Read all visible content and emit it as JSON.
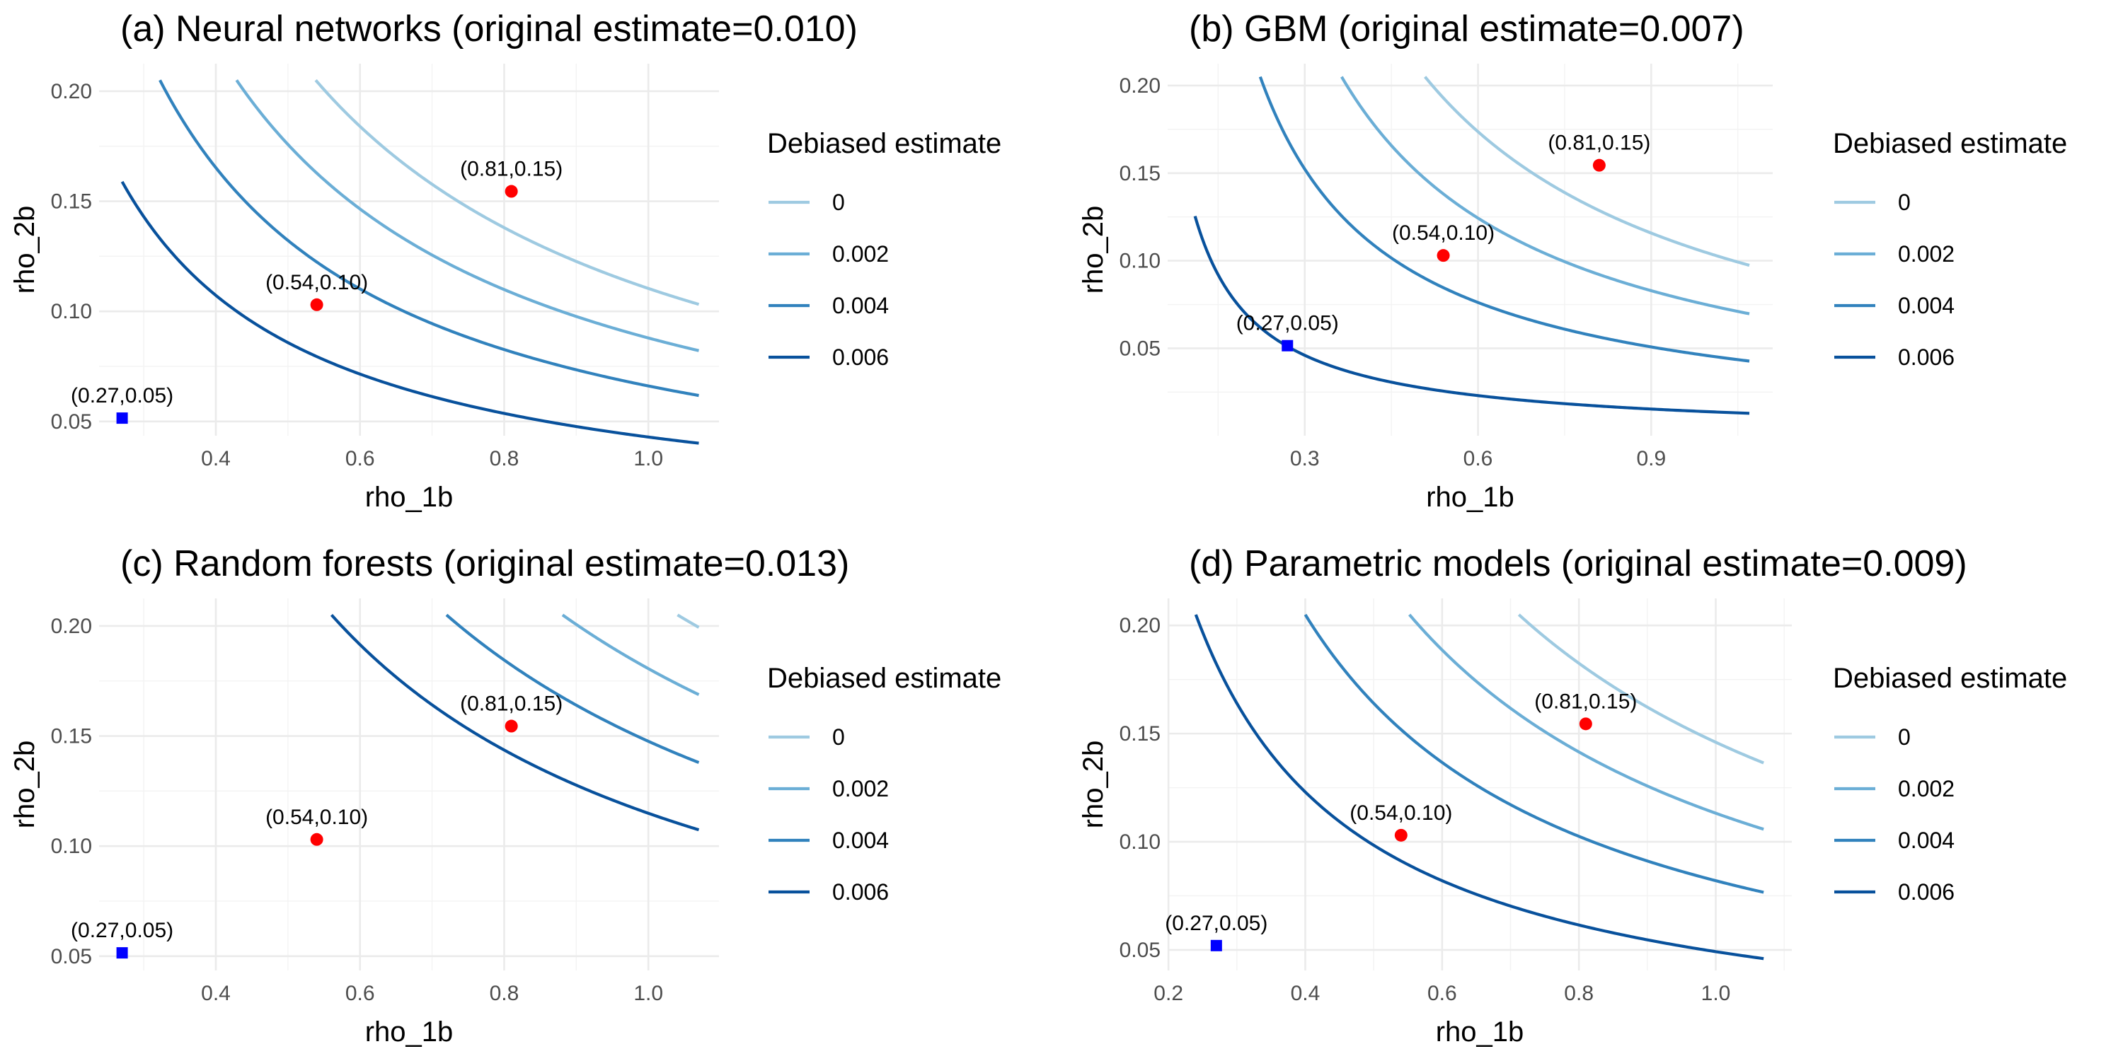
{
  "chart_data": [
    {
      "id": "a",
      "type": "line",
      "title": "(a) Neural networks (original estimate=0.010)",
      "xlabel": "rho_1b",
      "ylabel": "rho_2b",
      "xlim": [
        0.238,
        1.098
      ],
      "ylim": [
        0.0435,
        0.2125
      ],
      "xticks": [
        0.4,
        0.6,
        0.8,
        1.0
      ],
      "xtick_labels": [
        "0.4",
        "0.6",
        "0.8",
        "1.0"
      ],
      "yticks": [
        0.05,
        0.1,
        0.15,
        0.2
      ],
      "ytick_labels": [
        "0.05",
        "0.10",
        "0.15",
        "0.20"
      ],
      "x_range": [
        0.27,
        1.07
      ],
      "y_range": [
        0.05,
        0.205
      ],
      "original_estimate": 0.01,
      "legend": {
        "title": "Debiased estimate",
        "position": "right"
      },
      "series": [
        {
          "name": "0",
          "level": 0,
          "color": "#9ecae1",
          "k": 0.1104
        },
        {
          "name": "0.002",
          "level": 0.002,
          "color": "#6baed6",
          "k": 0.0879
        },
        {
          "name": "0.004",
          "level": 0.004,
          "color": "#3182bd",
          "k": 0.0661
        },
        {
          "name": "0.006",
          "level": 0.006,
          "color": "#08519c",
          "k": 0.0429
        }
      ],
      "points": [
        {
          "label": "(0.27,0.05)",
          "x": 0.27,
          "y": 0.0515,
          "shape": "square",
          "color": "#0000ff"
        },
        {
          "label": "(0.54,0.10)",
          "x": 0.54,
          "y": 0.103,
          "shape": "circle",
          "color": "#ff0000"
        },
        {
          "label": "(0.81,0.15)",
          "x": 0.81,
          "y": 0.1545,
          "shape": "circle",
          "color": "#ff0000"
        }
      ]
    },
    {
      "id": "b",
      "type": "line",
      "title": "(b) GBM (original estimate=0.007)",
      "xlabel": "rho_1b",
      "ylabel": "rho_2b",
      "xlim": [
        0.0626,
        1.1104
      ],
      "ylim": [
        0.0001,
        0.2125
      ],
      "xticks": [
        0.3,
        0.6,
        0.9
      ],
      "xtick_labels": [
        "0.3",
        "0.6",
        "0.9"
      ],
      "yticks": [
        0.05,
        0.1,
        0.15,
        0.2
      ],
      "ytick_labels": [
        "0.05",
        "0.10",
        "0.15",
        "0.20"
      ],
      "x_range": [
        0.11,
        1.07
      ],
      "y_range": [
        0.0,
        0.205
      ],
      "original_estimate": 0.007,
      "legend": {
        "title": "Debiased estimate",
        "position": "right"
      },
      "series": [
        {
          "name": "0",
          "level": 0,
          "color": "#9ecae1",
          "k": 0.1042
        },
        {
          "name": "0.002",
          "level": 0.002,
          "color": "#6baed6",
          "k": 0.0746
        },
        {
          "name": "0.004",
          "level": 0.004,
          "color": "#3182bd",
          "k": 0.0457
        },
        {
          "name": "0.006",
          "level": 0.006,
          "color": "#08519c",
          "k": 0.0138
        }
      ],
      "points": [
        {
          "label": "(0.27,0.05)",
          "x": 0.27,
          "y": 0.0515,
          "shape": "square",
          "color": "#0000ff"
        },
        {
          "label": "(0.54,0.10)",
          "x": 0.54,
          "y": 0.103,
          "shape": "circle",
          "color": "#ff0000"
        },
        {
          "label": "(0.81,0.15)",
          "x": 0.81,
          "y": 0.1545,
          "shape": "circle",
          "color": "#ff0000"
        }
      ]
    },
    {
      "id": "c",
      "type": "line",
      "title": "(c) Random forests (original estimate=0.013)",
      "xlabel": "rho_1b",
      "ylabel": "rho_2b",
      "xlim": [
        0.238,
        1.098
      ],
      "ylim": [
        0.0435,
        0.2125
      ],
      "xticks": [
        0.4,
        0.6,
        0.8,
        1.0
      ],
      "xtick_labels": [
        "0.4",
        "0.6",
        "0.8",
        "1.0"
      ],
      "yticks": [
        0.05,
        0.1,
        0.15,
        0.2
      ],
      "ytick_labels": [
        "0.05",
        "0.10",
        "0.15",
        "0.20"
      ],
      "x_range": [
        0.27,
        1.07
      ],
      "y_range": [
        0.05,
        0.205
      ],
      "original_estimate": 0.013,
      "legend": {
        "title": "Debiased estimate",
        "position": "right"
      },
      "series": [
        {
          "name": "0",
          "level": 0,
          "color": "#9ecae1",
          "k": 0.2133
        },
        {
          "name": "0.002",
          "level": 0.002,
          "color": "#6baed6",
          "k": 0.1806
        },
        {
          "name": "0.004",
          "level": 0.004,
          "color": "#3182bd",
          "k": 0.1476
        },
        {
          "name": "0.006",
          "level": 0.006,
          "color": "#08519c",
          "k": 0.1149
        }
      ],
      "points": [
        {
          "label": "(0.27,0.05)",
          "x": 0.27,
          "y": 0.0515,
          "shape": "square",
          "color": "#0000ff"
        },
        {
          "label": "(0.54,0.10)",
          "x": 0.54,
          "y": 0.103,
          "shape": "circle",
          "color": "#ff0000"
        },
        {
          "label": "(0.81,0.15)",
          "x": 0.81,
          "y": 0.1545,
          "shape": "circle",
          "color": "#ff0000"
        }
      ]
    },
    {
      "id": "d",
      "type": "line",
      "title": "(d) Parametric models (original estimate=0.009)",
      "xlabel": "rho_1b",
      "ylabel": "rho_2b",
      "xlim": [
        0.1988,
        1.1112
      ],
      "ylim": [
        0.0405,
        0.2125
      ],
      "xticks": [
        0.2,
        0.4,
        0.6,
        0.8,
        1.0
      ],
      "xtick_labels": [
        "0.2",
        "0.4",
        "0.6",
        "0.8",
        "1.0"
      ],
      "yticks": [
        0.05,
        0.1,
        0.15,
        0.2
      ],
      "ytick_labels": [
        "0.05",
        "0.10",
        "0.15",
        "0.20"
      ],
      "x_range": [
        0.24,
        1.07
      ],
      "y_range": [
        0.045,
        0.205
      ],
      "original_estimate": 0.009,
      "legend": {
        "title": "Debiased estimate",
        "position": "right"
      },
      "series": [
        {
          "name": "0",
          "level": 0,
          "color": "#9ecae1",
          "k": 0.146
        },
        {
          "name": "0.002",
          "level": 0.002,
          "color": "#6baed6",
          "k": 0.1132
        },
        {
          "name": "0.004",
          "level": 0.004,
          "color": "#3182bd",
          "k": 0.082
        },
        {
          "name": "0.006",
          "level": 0.006,
          "color": "#08519c",
          "k": 0.0492
        }
      ],
      "points": [
        {
          "label": "(0.27,0.05)",
          "x": 0.27,
          "y": 0.052,
          "shape": "square",
          "color": "#0000ff"
        },
        {
          "label": "(0.54,0.10)",
          "x": 0.54,
          "y": 0.103,
          "shape": "circle",
          "color": "#ff0000"
        },
        {
          "label": "(0.81,0.15)",
          "x": 0.81,
          "y": 0.1545,
          "shape": "circle",
          "color": "#ff0000"
        }
      ]
    }
  ]
}
